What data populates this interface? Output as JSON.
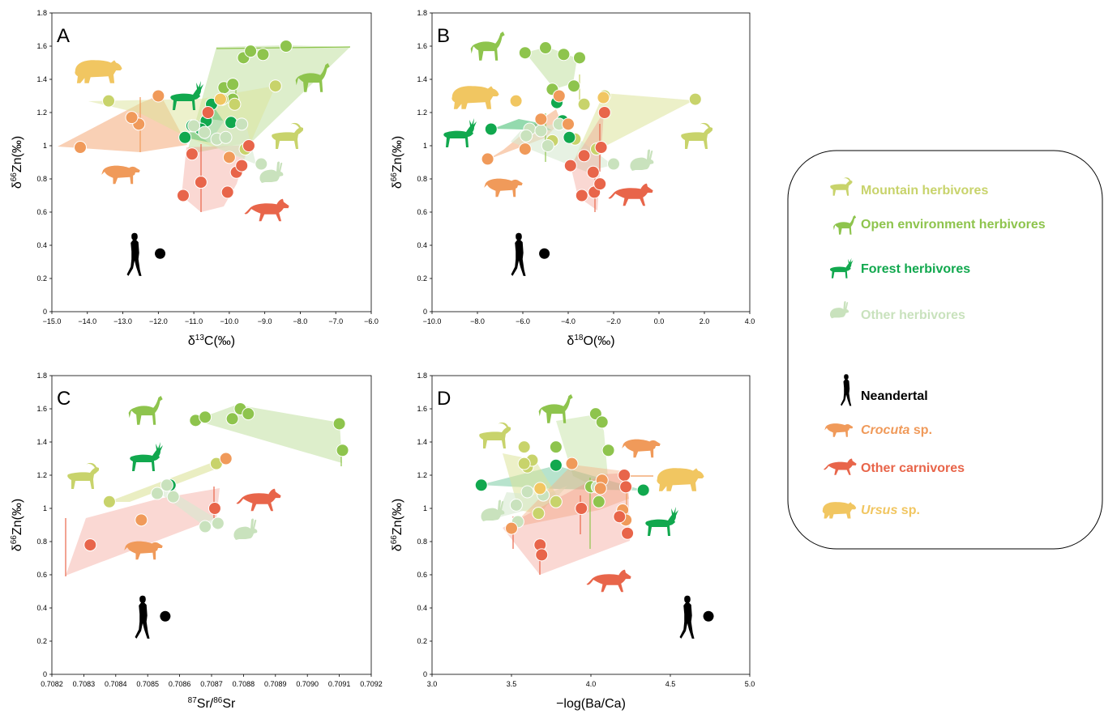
{
  "legend": {
    "items": [
      {
        "id": "mountain",
        "label": "Mountain herbivores",
        "color": "#c8d36b",
        "icon": "ibex-icon"
      },
      {
        "id": "open",
        "label": "Open environment herbivores",
        "color": "#8ec44d",
        "icon": "horse-icon"
      },
      {
        "id": "forest",
        "label": "Forest herbivores",
        "color": "#11a84e",
        "icon": "deer-icon"
      },
      {
        "id": "other_herb",
        "label": "Other herbivores",
        "color": "#c9e2bd",
        "icon": "rabbit-icon"
      },
      {
        "id": "neandertal",
        "label": "Neandertal",
        "color": "#000000",
        "icon": "human-icon"
      },
      {
        "id": "crocuta",
        "label": "Crocuta",
        "suffix": " sp.",
        "italic": true,
        "color": "#f09a5a",
        "icon": "hyena-icon"
      },
      {
        "id": "other_carn",
        "label": "Other carnivores",
        "color": "#e8654a",
        "icon": "wolf-icon"
      },
      {
        "id": "ursus",
        "label": "Ursus",
        "suffix": " sp.",
        "italic": true,
        "color": "#f1c661",
        "icon": "bear-icon"
      }
    ]
  },
  "chart_data": [
    {
      "panel": "A",
      "type": "scatter",
      "xlim": [
        -15,
        -6
      ],
      "ylim": [
        0,
        1.8
      ],
      "xticks": [
        "−15.0",
        "−14.0",
        "−13.0",
        "−12.0",
        "−11.0",
        "−10.0",
        "−9.0",
        "−8.0",
        "−7.0",
        "−6.0"
      ],
      "yticks": [
        "0",
        "0.2",
        "0.4",
        "0.6",
        "0.8",
        "1",
        "1.2",
        "1.4",
        "1.6",
        "1.8"
      ],
      "ylabel": {
        "pre": "δ",
        "sup": "66",
        "post": "Zn(‰)"
      },
      "xlabel": {
        "pre": "δ",
        "sup": "13",
        "post": "C(‰)"
      },
      "series": [
        {
          "group": "open",
          "points": [
            [
              -9.6,
              1.53
            ],
            [
              -9.4,
              1.57
            ],
            [
              -9.05,
              1.55
            ],
            [
              -8.4,
              1.6
            ],
            [
              -9.9,
              1.28
            ],
            [
              -10.15,
              1.35
            ],
            [
              -9.9,
              1.37
            ]
          ]
        },
        {
          "group": "mountain",
          "points": [
            [
              -13.4,
              1.27
            ],
            [
              -8.7,
              1.36
            ],
            [
              -10.2,
              1.28
            ],
            [
              -9.85,
              1.25
            ],
            [
              -9.55,
              0.98
            ]
          ]
        },
        {
          "group": "forest",
          "points": [
            [
              -10.5,
              1.25
            ],
            [
              -10.65,
              1.15
            ],
            [
              -9.95,
              1.14
            ],
            [
              -10.8,
              1.1
            ],
            [
              -11.25,
              1.05
            ],
            [
              -11.05,
              1.12
            ]
          ]
        },
        {
          "group": "other_herb",
          "points": [
            [
              -9.1,
              0.89
            ],
            [
              -10.7,
              1.08
            ],
            [
              -10.35,
              1.04
            ],
            [
              -9.65,
              1.13
            ],
            [
              -10.1,
              1.05
            ],
            [
              -11.0,
              1.12
            ]
          ]
        },
        {
          "group": "crocuta",
          "points": [
            [
              -14.2,
              0.99
            ],
            [
              -12.55,
              1.13
            ],
            [
              -12.75,
              1.17
            ],
            [
              -12.0,
              1.3
            ],
            [
              -10.0,
              0.93
            ]
          ]
        },
        {
          "group": "other_carn",
          "points": [
            [
              -10.6,
              1.2
            ],
            [
              -11.05,
              0.95
            ],
            [
              -10.8,
              0.78
            ],
            [
              -11.3,
              0.7
            ],
            [
              -10.05,
              0.72
            ],
            [
              -9.8,
              0.84
            ],
            [
              -9.65,
              0.88
            ],
            [
              -9.45,
              1.0
            ]
          ]
        },
        {
          "group": "ursus",
          "points": [
            [
              -10.25,
              1.28
            ]
          ]
        },
        {
          "group": "neandertal",
          "points": [
            [
              -11.95,
              0.35
            ]
          ]
        }
      ]
    },
    {
      "panel": "B",
      "type": "scatter",
      "xlim": [
        -10,
        4
      ],
      "ylim": [
        0,
        1.8
      ],
      "xticks": [
        "−10.0",
        "−8.0",
        "−6.0",
        "−4.0",
        "−2.0",
        "0.0",
        "2.0",
        "4.0"
      ],
      "yticks": [
        "0",
        "0.2",
        "0.4",
        "0.6",
        "0.8",
        "1",
        "1.2",
        "1.4",
        "1.6",
        "1.8"
      ],
      "ylabel": {
        "pre": "δ",
        "sup": "66",
        "post": "Zn(‰)"
      },
      "xlabel": {
        "pre": "δ",
        "sup": "18",
        "post": "O(‰)"
      },
      "series": [
        {
          "group": "open",
          "points": [
            [
              -5.9,
              1.56
            ],
            [
              -5.0,
              1.59
            ],
            [
              -4.2,
              1.55
            ],
            [
              -3.5,
              1.53
            ],
            [
              -4.7,
              1.34
            ],
            [
              -3.75,
              1.36
            ]
          ]
        },
        {
          "group": "mountain",
          "points": [
            [
              1.6,
              1.28
            ],
            [
              -2.4,
              1.3
            ],
            [
              -3.3,
              1.25
            ],
            [
              -2.75,
              0.98
            ],
            [
              -3.7,
              1.04
            ],
            [
              -4.7,
              1.03
            ]
          ]
        },
        {
          "group": "forest",
          "points": [
            [
              -7.4,
              1.1
            ],
            [
              -4.25,
              1.15
            ],
            [
              -4.5,
              1.26
            ],
            [
              -3.95,
              1.05
            ]
          ]
        },
        {
          "group": "other_herb",
          "points": [
            [
              -2.0,
              0.89
            ],
            [
              -5.7,
              1.1
            ],
            [
              -5.2,
              1.09
            ],
            [
              -4.4,
              1.13
            ],
            [
              -4.9,
              1.0
            ],
            [
              -5.85,
              1.06
            ]
          ]
        },
        {
          "group": "crocuta",
          "points": [
            [
              -7.55,
              0.92
            ],
            [
              -5.9,
              0.98
            ],
            [
              -5.2,
              1.16
            ],
            [
              -4.4,
              1.3
            ],
            [
              -4.0,
              1.13
            ]
          ]
        },
        {
          "group": "other_carn",
          "points": [
            [
              -2.4,
              1.2
            ],
            [
              -3.3,
              0.94
            ],
            [
              -3.9,
              0.88
            ],
            [
              -2.9,
              0.84
            ],
            [
              -3.4,
              0.7
            ],
            [
              -2.85,
              0.72
            ],
            [
              -2.6,
              0.77
            ],
            [
              -2.55,
              0.99
            ]
          ]
        },
        {
          "group": "ursus",
          "points": [
            [
              -6.3,
              1.27
            ],
            [
              -2.45,
              1.29
            ]
          ]
        },
        {
          "group": "neandertal",
          "points": [
            [
              -5.05,
              0.35
            ]
          ]
        }
      ]
    },
    {
      "panel": "C",
      "type": "scatter",
      "xlim": [
        0.7082,
        0.7092
      ],
      "ylim": [
        0,
        1.8
      ],
      "xticks": [
        "0.7082",
        "0.7083",
        "0.7084",
        "0.7085",
        "0.7086",
        "0.7087",
        "0.7088",
        "0.7089",
        "0.7090",
        "0.7091",
        "0.7092"
      ],
      "yticks": [
        "0",
        "0.2",
        "0.4",
        "0.6",
        "0.8",
        "1",
        "1.2",
        "1.4",
        "1.6",
        "1.8"
      ],
      "ylabel": {
        "pre": "δ",
        "sup": "66",
        "post": "Zn(‰)"
      },
      "xlabel": {
        "pre": "",
        "sup": "87",
        "post": "Sr/",
        "sup2": "86",
        "post2": "Sr"
      },
      "series": [
        {
          "group": "open",
          "points": [
            [
              0.70865,
              1.53
            ],
            [
              0.70868,
              1.55
            ],
            [
              0.708765,
              1.54
            ],
            [
              0.70879,
              1.6
            ],
            [
              0.708815,
              1.57
            ],
            [
              0.7091,
              1.51
            ],
            [
              0.70911,
              1.35
            ]
          ]
        },
        {
          "group": "mountain",
          "points": [
            [
              0.70838,
              1.04
            ],
            [
              0.708715,
              1.27
            ]
          ]
        },
        {
          "group": "forest",
          "points": [
            [
              0.70857,
              1.14
            ]
          ]
        },
        {
          "group": "other_herb",
          "points": [
            [
              0.70853,
              1.09
            ],
            [
              0.70856,
              1.14
            ],
            [
              0.70858,
              1.07
            ],
            [
              0.70868,
              0.89
            ],
            [
              0.70872,
              0.91
            ]
          ]
        },
        {
          "group": "crocuta",
          "points": [
            [
              0.70848,
              0.93
            ],
            [
              0.708745,
              1.3
            ]
          ]
        },
        {
          "group": "other_carn",
          "points": [
            [
              0.70832,
              0.78
            ],
            [
              0.70871,
              1.0
            ]
          ]
        },
        {
          "group": "neandertal",
          "points": [
            [
              0.708555,
              0.35
            ]
          ]
        }
      ]
    },
    {
      "panel": "D",
      "type": "scatter",
      "xlim": [
        3,
        5
      ],
      "ylim": [
        0,
        1.8
      ],
      "xticks": [
        "3.0",
        "3.5",
        "4.0",
        "4.5",
        "5.0"
      ],
      "yticks": [
        "0",
        "0.2",
        "0.4",
        "0.6",
        "0.8",
        "1",
        "1.2",
        "1.4",
        "1.6",
        "1.8"
      ],
      "ylabel": {
        "pre": "δ",
        "sup": "66",
        "post": "Zn(‰)"
      },
      "xlabel": {
        "pre": "−log(Ba/Ca)",
        "sup": "",
        "post": ""
      },
      "series": [
        {
          "group": "open",
          "points": [
            [
              4.03,
              1.57
            ],
            [
              4.07,
              1.52
            ],
            [
              4.11,
              1.35
            ],
            [
              3.78,
              1.37
            ],
            [
              4.0,
              1.13
            ],
            [
              4.05,
              1.04
            ]
          ]
        },
        {
          "group": "mountain",
          "points": [
            [
              3.58,
              1.37
            ],
            [
              3.6,
              1.25
            ],
            [
              3.63,
              1.29
            ],
            [
              3.58,
              1.27
            ],
            [
              3.78,
              1.04
            ],
            [
              3.67,
              0.97
            ]
          ]
        },
        {
          "group": "forest",
          "points": [
            [
              3.31,
              1.14
            ],
            [
              3.78,
              1.26
            ],
            [
              4.33,
              1.11
            ]
          ]
        },
        {
          "group": "other_herb",
          "points": [
            [
              3.53,
              1.02
            ],
            [
              3.54,
              0.92
            ],
            [
              3.6,
              1.1
            ],
            [
              3.7,
              1.08
            ],
            [
              4.04,
              1.13
            ]
          ]
        },
        {
          "group": "crocuta",
          "points": [
            [
              3.5,
              0.88
            ],
            [
              3.88,
              1.27
            ],
            [
              4.07,
              1.17
            ],
            [
              4.06,
              1.12
            ],
            [
              4.2,
              0.99
            ],
            [
              4.22,
              0.93
            ]
          ]
        },
        {
          "group": "other_carn",
          "points": [
            [
              3.68,
              0.78
            ],
            [
              3.69,
              0.72
            ],
            [
              3.94,
              1.0
            ],
            [
              4.18,
              0.95
            ],
            [
              4.21,
              1.2
            ],
            [
              4.23,
              0.85
            ],
            [
              4.22,
              1.13
            ]
          ]
        },
        {
          "group": "ursus",
          "points": [
            [
              3.68,
              1.12
            ]
          ]
        },
        {
          "group": "neandertal",
          "points": [
            [
              4.74,
              0.35
            ]
          ]
        }
      ]
    }
  ]
}
